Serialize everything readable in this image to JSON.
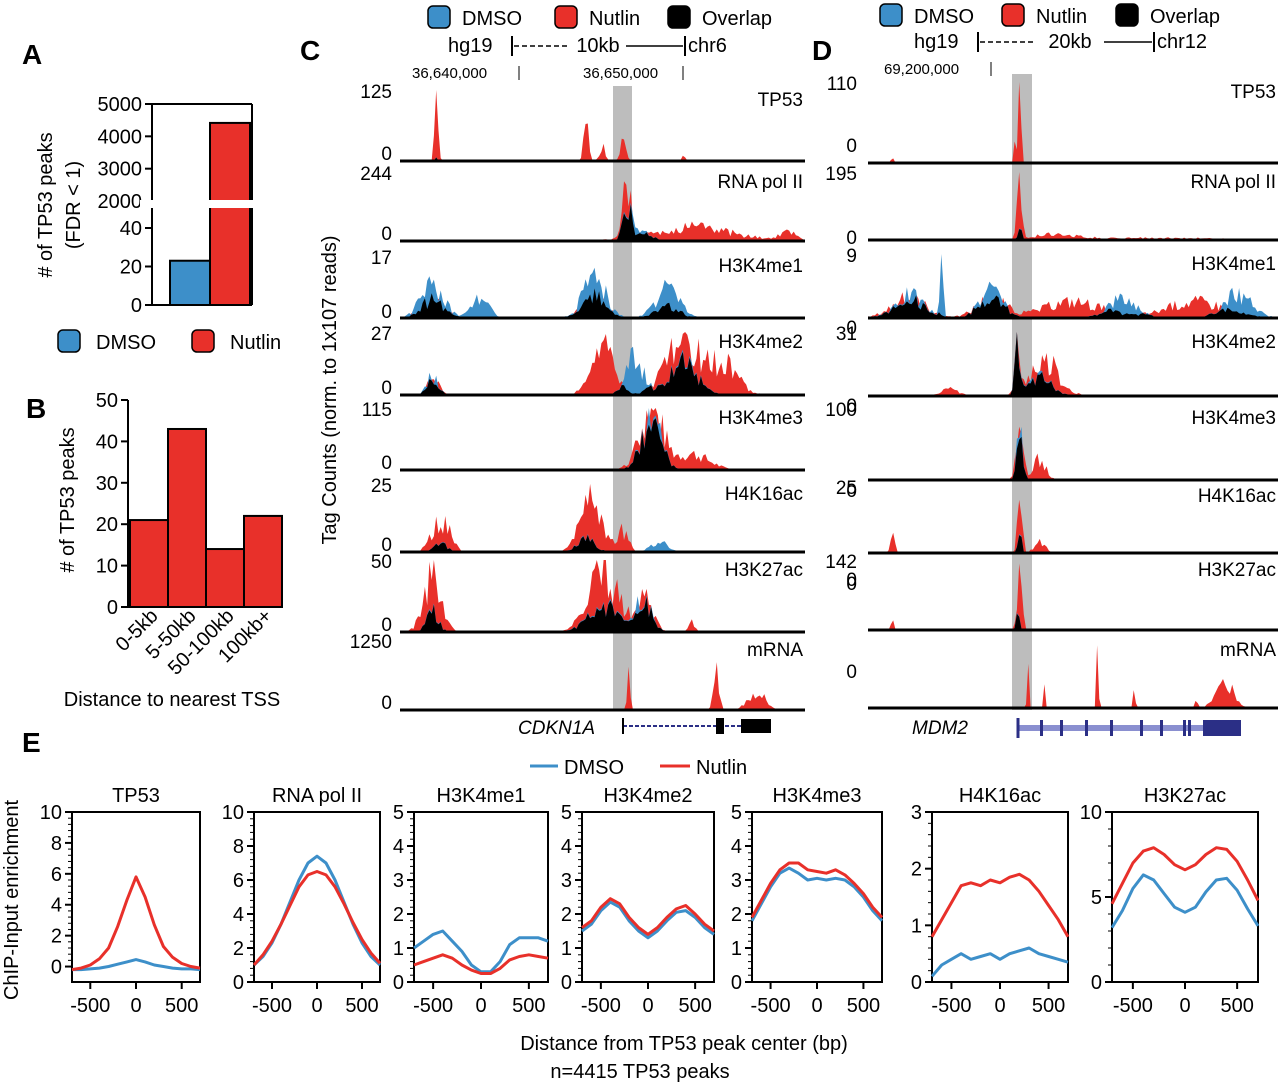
{
  "colors": {
    "dmso": "#3d8fc9",
    "nutlin": "#e8302a",
    "overlap": "#000000",
    "highlight": "#bdbdbd",
    "gene": "#2b2f86"
  },
  "panels": {
    "a": "A",
    "b": "B",
    "c": "C",
    "d": "D",
    "e": "E"
  },
  "legend": {
    "dmso": "DMSO",
    "nutlin": "Nutlin",
    "overlap": "Overlap"
  },
  "chart_data": [
    {
      "id": "A",
      "type": "bar",
      "ylabel": "# of TP53 peaks (FDR < 1)",
      "categories": [
        "DMSO",
        "Nutlin"
      ],
      "values": [
        23,
        4415
      ],
      "axis_break": [
        50,
        2000
      ],
      "yticks_lower": [
        "0",
        "20",
        "40"
      ],
      "yticks_upper": [
        "2000",
        "3000",
        "4000",
        "5000"
      ],
      "legend": [
        "DMSO",
        "Nutlin"
      ]
    },
    {
      "id": "B",
      "type": "bar",
      "ylabel": "# of TP53 peaks",
      "xlabel": "Distance to nearest TSS",
      "categories": [
        "0-5kb",
        "5-50kb",
        "50-100kb",
        "100kb+"
      ],
      "values": [
        21,
        43,
        14,
        22
      ],
      "ylim": [
        0,
        50
      ],
      "yticks": [
        "0",
        "10",
        "20",
        "30",
        "40",
        "50"
      ]
    },
    {
      "id": "C",
      "type": "area",
      "genome": "hg19",
      "scale": "10kb",
      "chrom": "chr6",
      "coords": [
        "36,640,000",
        "36,650,000"
      ],
      "gene": "CDKN1A",
      "ylabel": "Tag Counts (norm. to 1x10",
      "ylabel_exp": "7",
      "ylabel_end": " reads)",
      "tracks": [
        {
          "name": "TP53",
          "max": "125",
          "min": "0"
        },
        {
          "name": "RNA pol II",
          "max": "244",
          "min": "0"
        },
        {
          "name": "H3K4me1",
          "max": "17",
          "min": "0"
        },
        {
          "name": "H3K4me2",
          "max": "27",
          "min": "0"
        },
        {
          "name": "H3K4me3",
          "max": "115",
          "min": "0"
        },
        {
          "name": "H4K16ac",
          "max": "25",
          "min": "0"
        },
        {
          "name": "H3K27ac",
          "max": "50",
          "min": "0"
        },
        {
          "name": "mRNA",
          "max": "1250",
          "min": "0"
        }
      ]
    },
    {
      "id": "D",
      "type": "area",
      "genome": "hg19",
      "scale": "20kb",
      "chrom": "chr12",
      "coords": [
        "69,200,000"
      ],
      "gene": "MDM2",
      "tracks": [
        {
          "name": "TP53",
          "max": "110",
          "min": "0"
        },
        {
          "name": "RNA pol II",
          "max": "195",
          "min": "0"
        },
        {
          "name": "H3K4me1",
          "max": "9",
          "min": "0"
        },
        {
          "name": "H3K4me2",
          "max": "31",
          "min": "0"
        },
        {
          "name": "H3K4me3",
          "max": "100",
          "min": "0"
        },
        {
          "name": "H4K16ac",
          "max": "25",
          "min": "0"
        },
        {
          "name": "H3K27ac",
          "max": "142",
          "min": "0"
        },
        {
          "name": "mRNA",
          "max": "",
          "min": "0"
        }
      ]
    },
    {
      "id": "E",
      "type": "line",
      "ylabel": "ChIP-Input enrichment",
      "xlabel": "Distance from TP53 peak center (bp)",
      "note": "n=4415 TP53 peaks",
      "legend": [
        "DMSO",
        "Nutlin"
      ],
      "x": [
        -700,
        -600,
        -500,
        -400,
        -300,
        -200,
        -100,
        0,
        100,
        200,
        300,
        400,
        500,
        600,
        700
      ],
      "xticks": [
        "-500",
        "0",
        "500"
      ],
      "plots": [
        {
          "title": "TP53",
          "ylim": [
            -1,
            10
          ],
          "yticks": [
            "0",
            "2",
            "4",
            "6",
            "8",
            "10"
          ],
          "dmso": [
            -0.2,
            -0.2,
            -0.15,
            -0.1,
            0,
            0.15,
            0.3,
            0.45,
            0.3,
            0.1,
            0,
            -0.1,
            -0.15,
            -0.15,
            -0.2
          ],
          "nutlin": [
            -0.2,
            -0.1,
            0.1,
            0.5,
            1.2,
            2.6,
            4.3,
            5.8,
            4.5,
            2.7,
            1.3,
            0.6,
            0.2,
            0,
            -0.1
          ]
        },
        {
          "title": "RNA pol II",
          "ylim": [
            0,
            10
          ],
          "yticks": [
            "0",
            "2",
            "4",
            "6",
            "8",
            "10"
          ],
          "dmso": [
            1.0,
            1.5,
            2.3,
            3.4,
            4.7,
            6.0,
            7.0,
            7.4,
            7.0,
            6.0,
            4.7,
            3.4,
            2.3,
            1.5,
            1.0
          ],
          "nutlin": [
            1.0,
            1.6,
            2.4,
            3.4,
            4.5,
            5.6,
            6.3,
            6.5,
            6.3,
            5.6,
            4.6,
            3.5,
            2.5,
            1.7,
            1.1
          ]
        },
        {
          "title": "H3K4me1",
          "ylim": [
            0,
            5
          ],
          "yticks": [
            "0",
            "1",
            "2",
            "3",
            "4",
            "5"
          ],
          "dmso": [
            1.0,
            1.2,
            1.4,
            1.5,
            1.2,
            0.9,
            0.5,
            0.3,
            0.3,
            0.6,
            1.1,
            1.3,
            1.3,
            1.3,
            1.2
          ],
          "nutlin": [
            0.5,
            0.6,
            0.7,
            0.8,
            0.7,
            0.5,
            0.35,
            0.25,
            0.25,
            0.4,
            0.65,
            0.75,
            0.8,
            0.75,
            0.7
          ]
        },
        {
          "title": "H3K4me2",
          "ylim": [
            0,
            5
          ],
          "yticks": [
            "0",
            "1",
            "2",
            "3",
            "4",
            "5"
          ],
          "dmso": [
            1.5,
            1.7,
            2.1,
            2.35,
            2.2,
            1.8,
            1.5,
            1.3,
            1.5,
            1.8,
            2.05,
            2.1,
            1.9,
            1.6,
            1.4
          ],
          "nutlin": [
            1.6,
            1.8,
            2.2,
            2.45,
            2.3,
            1.9,
            1.6,
            1.4,
            1.6,
            1.9,
            2.15,
            2.25,
            2.0,
            1.7,
            1.5
          ]
        },
        {
          "title": "H3K4me3",
          "ylim": [
            0,
            5
          ],
          "yticks": [
            "0",
            "1",
            "2",
            "3",
            "4",
            "5"
          ],
          "dmso": [
            1.8,
            2.3,
            2.8,
            3.2,
            3.35,
            3.2,
            3.0,
            3.05,
            3.0,
            3.05,
            3.0,
            2.8,
            2.5,
            2.1,
            1.8
          ],
          "nutlin": [
            1.9,
            2.4,
            2.9,
            3.3,
            3.5,
            3.5,
            3.3,
            3.25,
            3.2,
            3.3,
            3.15,
            2.9,
            2.6,
            2.2,
            1.9
          ]
        },
        {
          "title": "H4K16ac",
          "ylim": [
            0,
            3
          ],
          "yticks": [
            "0",
            "1",
            "2",
            "3"
          ],
          "dmso": [
            0.1,
            0.3,
            0.4,
            0.5,
            0.4,
            0.45,
            0.5,
            0.4,
            0.5,
            0.55,
            0.6,
            0.5,
            0.45,
            0.4,
            0.35
          ],
          "nutlin": [
            0.8,
            1.1,
            1.4,
            1.7,
            1.75,
            1.7,
            1.8,
            1.75,
            1.85,
            1.9,
            1.8,
            1.6,
            1.35,
            1.1,
            0.8
          ]
        },
        {
          "title": "H3K27ac",
          "ylim": [
            0,
            10
          ],
          "yticks": [
            "0",
            "5",
            "10"
          ],
          "dmso": [
            3.2,
            4.2,
            5.5,
            6.3,
            6.0,
            5.2,
            4.4,
            4.1,
            4.4,
            5.3,
            6.0,
            6.1,
            5.4,
            4.3,
            3.3
          ],
          "nutlin": [
            4.6,
            5.8,
            7.0,
            7.7,
            7.9,
            7.5,
            6.9,
            6.6,
            6.9,
            7.5,
            7.9,
            7.8,
            7.1,
            6.0,
            4.8
          ]
        }
      ]
    }
  ]
}
